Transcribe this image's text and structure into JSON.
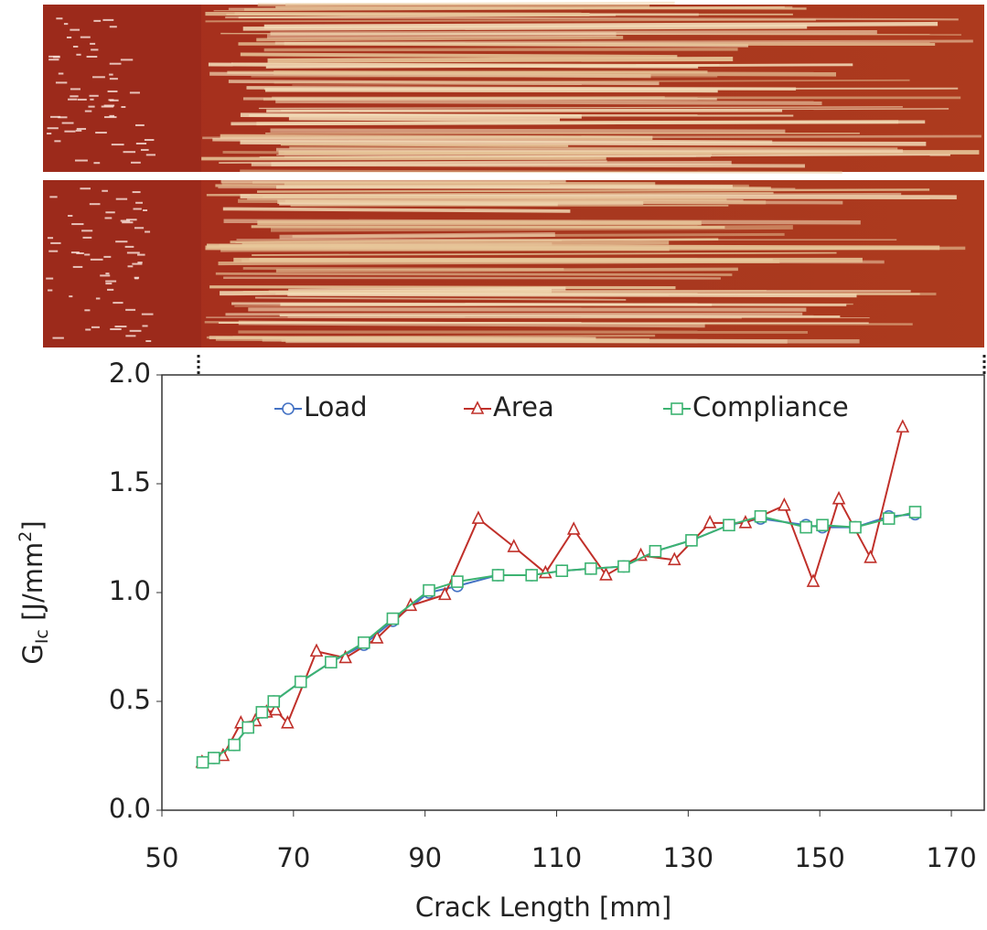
{
  "chart_data": {
    "type": "line",
    "xlabel": "Crack Length [mm]",
    "ylabel": {
      "main": "G",
      "sub": "Ic",
      "rest": " [J/mm",
      "sup": "2",
      "end": "]"
    },
    "xlim": [
      50,
      175
    ],
    "ylim": [
      0,
      2
    ],
    "xticks": [
      50,
      70,
      90,
      110,
      130,
      150,
      170
    ],
    "yticks": [
      {
        "value": 0,
        "label": "0.0"
      },
      0.5,
      {
        "value": 1,
        "label": "1.0"
      },
      1.5,
      {
        "value": 2,
        "label": "2.0"
      }
    ],
    "grid": false,
    "legend": "top",
    "series": [
      {
        "name": "Load",
        "color": "#4472c4",
        "marker": "circle",
        "x": [
          56.2,
          57.9,
          61.0,
          63.1,
          65.2,
          67.0,
          71.1,
          75.7,
          80.7,
          85.1,
          90.6,
          94.9,
          101.1,
          106.2,
          110.8,
          115.2,
          120.2,
          125.0,
          130.5,
          136.2,
          141.0,
          147.9,
          150.4,
          155.4,
          160.5,
          164.5
        ],
        "values": [
          0.22,
          0.24,
          0.3,
          0.38,
          0.45,
          0.5,
          0.59,
          0.68,
          0.76,
          0.87,
          1.0,
          1.03,
          1.08,
          1.08,
          1.1,
          1.11,
          1.12,
          1.19,
          1.24,
          1.31,
          1.34,
          1.31,
          1.3,
          1.3,
          1.35,
          1.36
        ]
      },
      {
        "name": "Area",
        "color": "#c0302a",
        "marker": "triangle",
        "x": [
          56.1,
          59.3,
          62.0,
          64.2,
          65.9,
          67.3,
          69.1,
          73.5,
          77.9,
          82.7,
          87.8,
          93.0,
          98.1,
          103.5,
          108.3,
          112.6,
          117.5,
          122.8,
          127.9,
          133.3,
          138.7,
          144.6,
          149.0,
          152.9,
          157.7,
          162.6
        ],
        "values": [
          0.22,
          0.25,
          0.4,
          0.41,
          0.45,
          0.46,
          0.4,
          0.73,
          0.7,
          0.79,
          0.94,
          0.99,
          1.34,
          1.21,
          1.09,
          1.29,
          1.08,
          1.17,
          1.15,
          1.32,
          1.32,
          1.4,
          1.05,
          1.43,
          1.16,
          1.76
        ]
      },
      {
        "name": "Compliance",
        "color": "#3cb371",
        "marker": "square",
        "x": [
          56.2,
          57.9,
          61.0,
          63.1,
          65.2,
          67.0,
          71.1,
          75.7,
          80.7,
          85.1,
          90.6,
          94.9,
          101.1,
          106.2,
          110.8,
          115.2,
          120.2,
          125.0,
          130.5,
          136.2,
          141.0,
          147.9,
          150.4,
          155.4,
          160.5,
          164.5
        ],
        "values": [
          0.22,
          0.24,
          0.3,
          0.38,
          0.45,
          0.5,
          0.59,
          0.68,
          0.77,
          0.88,
          1.01,
          1.05,
          1.08,
          1.08,
          1.1,
          1.11,
          1.12,
          1.19,
          1.24,
          1.31,
          1.35,
          1.3,
          1.31,
          1.3,
          1.34,
          1.37
        ]
      }
    ]
  }
}
